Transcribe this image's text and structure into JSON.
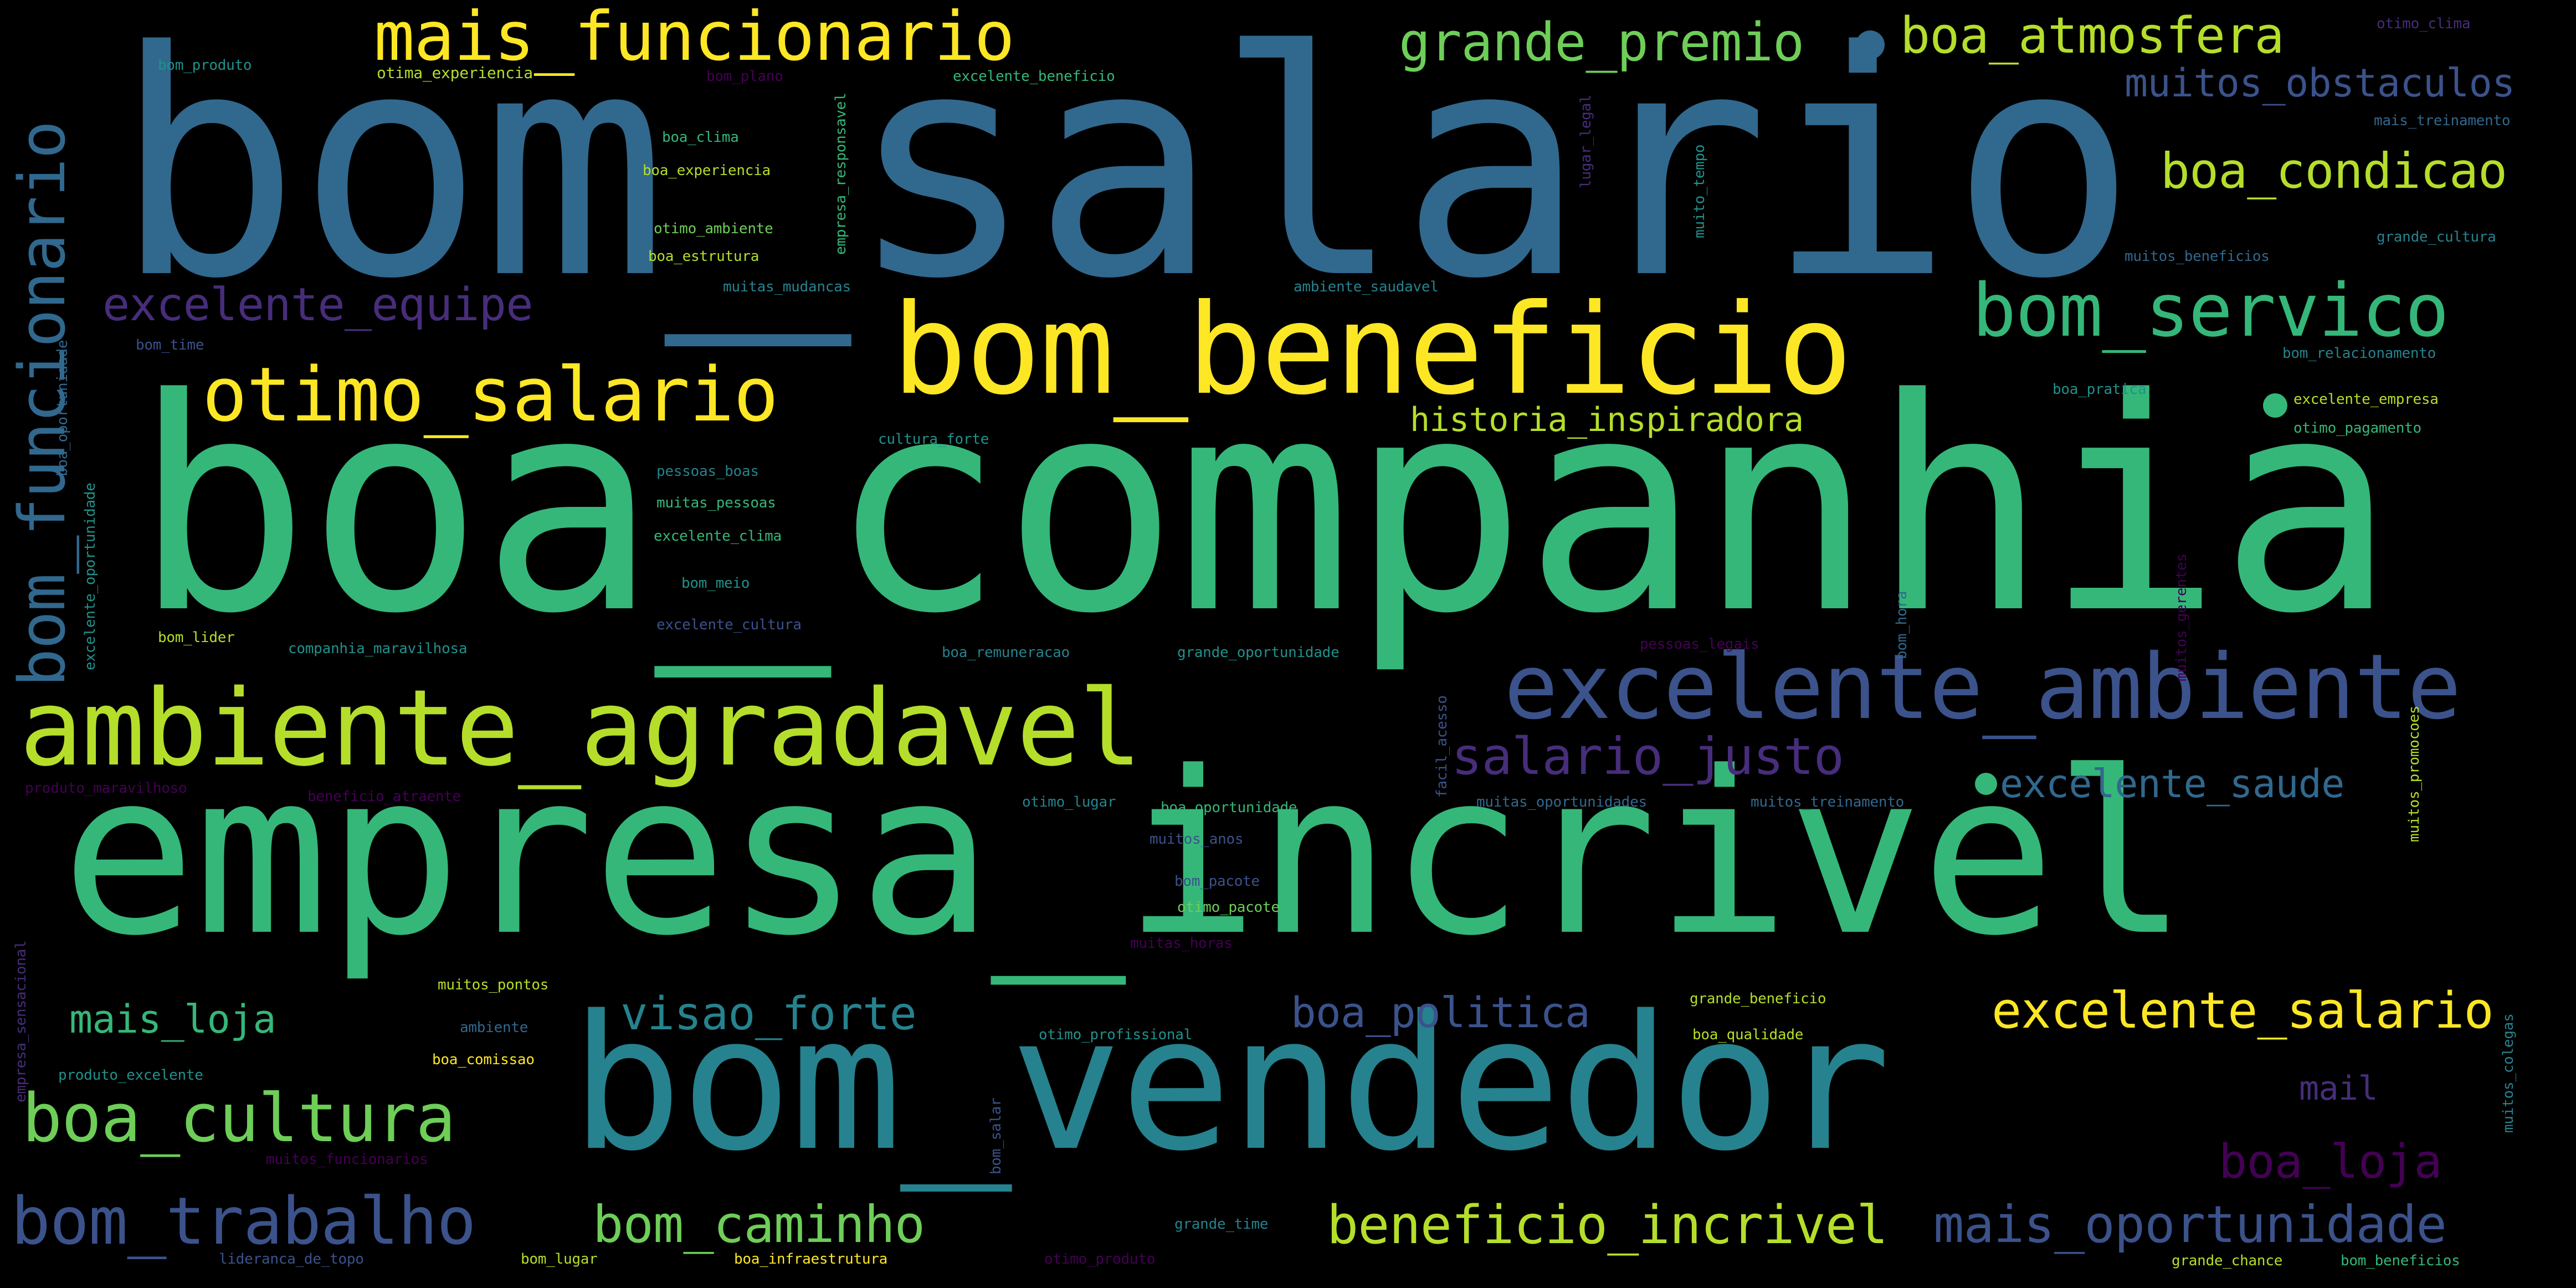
{
  "palette": {
    "background": "#000000",
    "teal": "#31688e",
    "blue": "#3b528b",
    "indigo": "#472d7b",
    "purple": "#440154",
    "cyan": "#26828e",
    "green": "#21918c",
    "lightgreen": "#35b779",
    "lime": "#6ece58",
    "yellowgreen": "#b5de2b",
    "yellow": "#fde725"
  },
  "words": {
    "w1": "bom_salario",
    "w2": "boa_companhia",
    "w3": "empresa_incrivel",
    "w4": "bom_vendedor",
    "w5": "bom_beneficio",
    "w6": "ambiente_agradavel",
    "w7": "excelente_ambiente",
    "w8": "otimo_salario",
    "w9": "bom_servico",
    "w10": "mais_funcionario",
    "w11": "bom_funcionario",
    "w12": "boa_cultura",
    "w13": "bom_trabalho",
    "w14": "grande_premio",
    "w15": "boa_atmosfera",
    "w16": "boa_condicao",
    "w17": "excelente_equipe",
    "w18": "salario_justo",
    "w19": "excelente_salario",
    "w20": "beneficio_incrivel",
    "w21": "mais_oportunidade",
    "w22": "visao_forte",
    "w23": "bom_caminho",
    "w24": "boa_politica",
    "w25": "muitos_obstaculos",
    "w26": "historia_inspiradora",
    "w27": "excelente_saude",
    "w28": "mais_loja",
    "w29": "boa_loja",
    "w30": "mail",
    "s1": "bom_produto",
    "s2": "otima_experiencia",
    "s3": "bom_plano",
    "s4": "excelente_beneficio",
    "s5": "otimo_clima",
    "s6": "mais_treinamento",
    "s7": "boa_clima",
    "s8": "boa_experiencia",
    "s9": "otimo_ambiente",
    "s10": "boa_estrutura",
    "s11": "muitas_mudancas",
    "s12": "ambiente_saudavel",
    "s13": "muitos_beneficios",
    "s14": "grande_cultura",
    "s15": "bom_time",
    "s16": "bom_relacionamento",
    "s17": "boa_pratica",
    "s18": "excelente_empresa",
    "s19": "otimo_pagamento",
    "s20": "cultura_forte",
    "s21": "pessoas_boas",
    "s22": "muitas_pessoas",
    "s23": "excelente_clima",
    "s24": "bom_meio",
    "s25": "excelente_cultura",
    "s26": "bom_lider",
    "s27": "companhia_maravilhosa",
    "s28": "boa_remuneracao",
    "s29": "grande_oportunidade",
    "s30": "pessoas_legais",
    "s31": "produto_maravilhoso",
    "s32": "beneficio_atraente",
    "s33": "otimo_lugar",
    "s34": "boa_oportunidade",
    "s35": "muitas_oportunidades",
    "s36": "muitos_treinamento",
    "s37": "muitos_anos",
    "s38": "bom_pacote",
    "s39": "otimo_pacote",
    "s40": "muitas_horas",
    "s41": "muitos_pontos",
    "s42": "grande_beneficio",
    "s43": "ambiente",
    "s44": "otimo_profissional",
    "s45": "boa_qualidade",
    "s46": "produto_excelente",
    "s47": "boa_comissao",
    "s48": "muitos_funcionarios",
    "s49": "grande_time",
    "s50": "lideranca_de_topo",
    "s51": "bom_lugar",
    "s52": "boa_infraestrutura",
    "s53": "otimo_produto",
    "s54": "grande_chance",
    "s55": "bom_beneficios",
    "s56": "empresa_responsavel",
    "s57": "lugar_legal",
    "s58": "muito_tempo",
    "s59": "boa_oportunidade",
    "s60": "excelente_oportunidade",
    "s61": "bom_hora",
    "s62": "facil_acesso",
    "s63": "muitos_gerentes",
    "s64": "muitos_promocoes",
    "s65": "empresa_sensacional",
    "s66": "muitos_colegas",
    "s67": "bom_salar"
  }
}
